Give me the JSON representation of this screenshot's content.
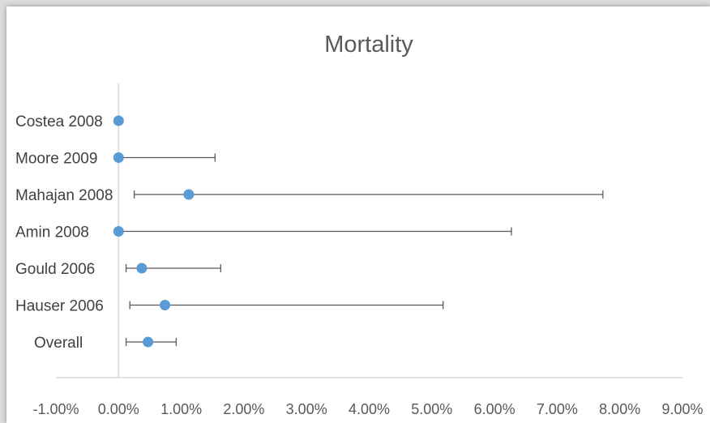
{
  "chart_data": {
    "type": "scatter",
    "title": "Mortality",
    "xlabel": "",
    "ylabel": "",
    "xlim": [
      -0.01,
      0.09
    ],
    "x_ticks": [
      -0.01,
      0.0,
      0.01,
      0.02,
      0.03,
      0.04,
      0.05,
      0.06,
      0.07,
      0.08,
      0.09
    ],
    "x_tick_labels": [
      "-1.00%",
      "0.00%",
      "1.00%",
      "2.00%",
      "3.00%",
      "4.00%",
      "5.00%",
      "6.00%",
      "7.00%",
      "8.00%",
      "9.00%"
    ],
    "grid": false,
    "legend": "none",
    "points": [
      {
        "label": "Costea 2008",
        "estimate": 0.0,
        "lower": null,
        "upper": null
      },
      {
        "label": "Moore 2009",
        "estimate": 0.0,
        "lower": 0.0,
        "upper": 0.0154
      },
      {
        "label": "Mahajan 2008",
        "estimate": 0.0112,
        "lower": 0.0025,
        "upper": 0.0773
      },
      {
        "label": "Amin 2008",
        "estimate": 0.0,
        "lower": 0.0,
        "upper": 0.0627
      },
      {
        "label": "Gould 2006",
        "estimate": 0.0037,
        "lower": 0.0012,
        "upper": 0.0163
      },
      {
        "label": "Hauser 2006",
        "estimate": 0.0074,
        "lower": 0.0018,
        "upper": 0.0518
      },
      {
        "label": "Overall",
        "estimate": 0.0047,
        "lower": 0.0012,
        "upper": 0.0092
      }
    ],
    "colors": {
      "marker": "#5b9bd5",
      "error_bar": "#595959",
      "axis": "#d9d9d9"
    }
  }
}
